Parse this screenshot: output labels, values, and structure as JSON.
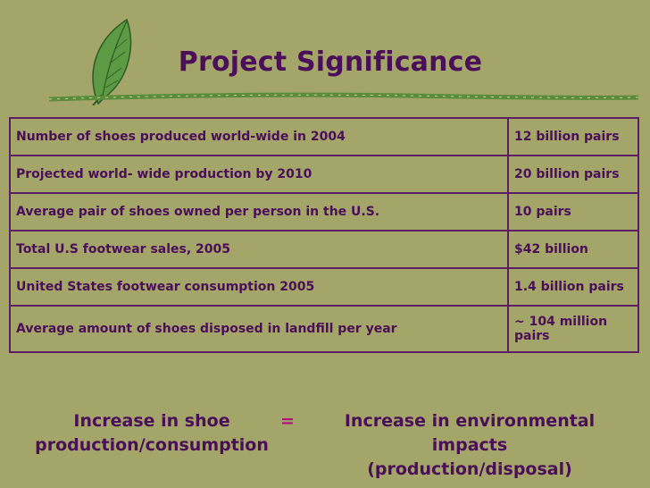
{
  "slide": {
    "title": "Project Significance",
    "rows": [
      {
        "label": "Number of shoes produced world-wide in 2004",
        "value": "12 billion pairs"
      },
      {
        "label": "Projected world- wide production by 2010",
        "value": "20 billion pairs"
      },
      {
        "label": "Average pair of shoes owned per person in the U.S.",
        "value": "10 pairs"
      },
      {
        "label": "Total U.S footwear sales, 2005",
        "value": "$42 billion"
      },
      {
        "label": "United States footwear consumption 2005",
        "value": "1.4 billion pairs"
      },
      {
        "label": "Average amount of shoes disposed in landfill per year",
        "value": "~ 104 million pairs"
      }
    ],
    "bottom": {
      "left_line1": "Increase in shoe",
      "left_line2": "production/consumption",
      "equals": "=",
      "right_line1": "Increase in environmental",
      "right_line2": "impacts (production/disposal)"
    }
  },
  "colors": {
    "background": "#a3a569",
    "text": "#4b0f59",
    "border": "#5b1f63",
    "equals": "#b0107f",
    "leaf": "#4f8a3a",
    "stem": "#5a8c3c"
  }
}
